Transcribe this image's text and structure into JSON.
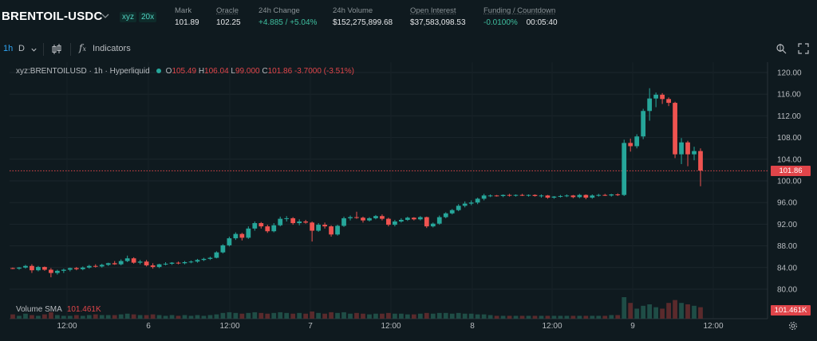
{
  "header": {
    "symbol": "BRENTOIL-USDC",
    "badge_dex": "xyz",
    "badge_leverage": "20x",
    "stats": [
      {
        "label": "Mark",
        "value": "101.89"
      },
      {
        "label": "Oracle",
        "value": "102.25"
      },
      {
        "label": "24h Change",
        "value": "+4.885 / +5.04%"
      },
      {
        "label": "24h Volume",
        "value": "$152,275,899.68"
      },
      {
        "label": "Open Interest",
        "value": "$37,583,098.53"
      },
      {
        "label": "Funding / Countdown",
        "value": "-0.0100%",
        "value2": "00:05:40"
      }
    ]
  },
  "toolbar": {
    "interval": "1h",
    "interval2": "D",
    "indicators_label": "Indicators"
  },
  "legend": {
    "title": "xyz:BRENTOILUSD · 1h · Hyperliquid",
    "o_label": "O",
    "o": "105.49",
    "h_label": "H",
    "h": "106.04",
    "l_label": "L",
    "l": "99.000",
    "c_label": "C",
    "c": "101.86",
    "change": "-3.7000 (-3.51%)"
  },
  "volume": {
    "label": "Volume SMA",
    "value": "101.461K",
    "tag": "101.461K"
  },
  "price_tag": "101.86",
  "colors": {
    "up": "#26a69a",
    "down": "#ef5350",
    "bg": "#0f1a1f"
  },
  "chart_data": {
    "type": "candlestick",
    "y_ticks": [
      "120.00",
      "116.00",
      "112.00",
      "108.00",
      "104.00",
      "100.00",
      "96.00",
      "92.00",
      "88.00",
      "84.00",
      "80.00"
    ],
    "x_ticks": [
      "12:00",
      "6",
      "12:00",
      "7",
      "12:00",
      "8",
      "12:00",
      "9",
      "12:00"
    ],
    "ylim": [
      78.5,
      121
    ],
    "last_price": 101.86,
    "candles": [
      [
        83.9,
        84.0,
        83.7,
        83.8
      ],
      [
        83.8,
        84.1,
        83.6,
        84.0
      ],
      [
        84.0,
        84.5,
        83.8,
        84.3
      ],
      [
        84.3,
        84.6,
        83.0,
        83.5
      ],
      [
        83.5,
        84.3,
        83.3,
        84.1
      ],
      [
        84.1,
        84.2,
        83.4,
        83.6
      ],
      [
        83.6,
        83.9,
        82.2,
        83.0
      ],
      [
        83.0,
        83.6,
        82.7,
        83.4
      ],
      [
        83.4,
        83.8,
        83.0,
        83.6
      ],
      [
        83.6,
        84.0,
        83.3,
        83.9
      ],
      [
        83.9,
        84.1,
        83.5,
        83.7
      ],
      [
        83.7,
        84.2,
        83.5,
        84.0
      ],
      [
        84.0,
        84.5,
        83.8,
        84.3
      ],
      [
        84.3,
        84.6,
        84.0,
        84.2
      ],
      [
        84.2,
        84.7,
        84.0,
        84.5
      ],
      [
        84.5,
        84.9,
        84.3,
        84.8
      ],
      [
        84.8,
        85.2,
        84.5,
        84.6
      ],
      [
        84.6,
        85.5,
        84.4,
        85.2
      ],
      [
        85.2,
        86.2,
        85.0,
        85.7
      ],
      [
        85.7,
        85.9,
        84.7,
        84.9
      ],
      [
        84.9,
        85.4,
        84.6,
        85.1
      ],
      [
        85.1,
        85.4,
        84.2,
        84.4
      ],
      [
        84.4,
        84.8,
        83.8,
        84.1
      ],
      [
        84.1,
        84.7,
        83.9,
        84.6
      ],
      [
        84.6,
        85.0,
        84.4,
        84.7
      ],
      [
        84.7,
        85.0,
        84.5,
        84.9
      ],
      [
        84.9,
        85.1,
        84.6,
        84.8
      ],
      [
        84.8,
        85.2,
        84.6,
        85.0
      ],
      [
        85.0,
        85.3,
        84.8,
        85.1
      ],
      [
        85.1,
        85.6,
        84.9,
        85.4
      ],
      [
        85.4,
        85.8,
        85.2,
        85.6
      ],
      [
        85.6,
        86.0,
        85.4,
        85.8
      ],
      [
        85.8,
        87.0,
        85.7,
        86.8
      ],
      [
        86.8,
        88.3,
        86.6,
        88.1
      ],
      [
        88.1,
        89.7,
        87.9,
        89.4
      ],
      [
        89.4,
        90.5,
        89.1,
        90.2
      ],
      [
        90.2,
        90.4,
        89.0,
        89.5
      ],
      [
        89.5,
        91.6,
        89.3,
        91.2
      ],
      [
        91.2,
        92.5,
        90.8,
        92.2
      ],
      [
        92.2,
        92.4,
        91.2,
        91.6
      ],
      [
        91.6,
        91.9,
        90.4,
        90.7
      ],
      [
        90.7,
        92.2,
        90.5,
        91.8
      ],
      [
        91.8,
        93.4,
        91.6,
        93.0
      ],
      [
        93.0,
        93.5,
        92.5,
        93.1
      ],
      [
        93.1,
        93.3,
        91.9,
        92.2
      ],
      [
        92.2,
        92.9,
        91.8,
        92.5
      ],
      [
        92.5,
        92.8,
        92.1,
        92.3
      ],
      [
        92.3,
        92.5,
        88.8,
        90.8
      ],
      [
        90.8,
        92.2,
        90.6,
        91.9
      ],
      [
        91.9,
        92.3,
        91.2,
        91.6
      ],
      [
        91.6,
        91.8,
        89.7,
        90.1
      ],
      [
        90.1,
        91.9,
        89.9,
        91.7
      ],
      [
        91.7,
        93.4,
        91.5,
        93.1
      ],
      [
        93.1,
        93.6,
        92.7,
        93.3
      ],
      [
        93.3,
        94.3,
        93.0,
        93.2
      ],
      [
        93.2,
        93.4,
        92.3,
        92.7
      ],
      [
        92.7,
        93.3,
        92.5,
        93.1
      ],
      [
        93.1,
        93.7,
        92.9,
        93.5
      ],
      [
        93.5,
        93.8,
        92.7,
        93.0
      ],
      [
        93.0,
        93.2,
        91.6,
        91.9
      ],
      [
        91.9,
        92.8,
        91.6,
        92.5
      ],
      [
        92.5,
        93.1,
        92.3,
        92.8
      ],
      [
        92.8,
        93.4,
        92.6,
        93.2
      ],
      [
        93.2,
        93.3,
        92.7,
        92.9
      ],
      [
        92.9,
        93.5,
        92.7,
        93.3
      ],
      [
        93.3,
        93.4,
        91.3,
        91.6
      ],
      [
        91.6,
        92.3,
        91.4,
        92.1
      ],
      [
        92.1,
        93.6,
        91.9,
        93.3
      ],
      [
        93.3,
        94.2,
        93.1,
        94.0
      ],
      [
        94.0,
        94.8,
        93.8,
        94.6
      ],
      [
        94.6,
        95.7,
        94.4,
        95.4
      ],
      [
        95.4,
        96.2,
        95.1,
        95.8
      ],
      [
        95.8,
        96.4,
        95.5,
        96.0
      ],
      [
        96.0,
        96.9,
        95.7,
        96.7
      ],
      [
        96.7,
        97.6,
        96.4,
        97.3
      ],
      [
        97.3,
        97.5,
        97.0,
        97.3
      ],
      [
        97.3,
        97.4,
        97.1,
        97.2
      ],
      [
        97.2,
        97.5,
        97.0,
        97.4
      ],
      [
        97.4,
        97.6,
        97.1,
        97.3
      ],
      [
        97.3,
        97.5,
        97.1,
        97.4
      ],
      [
        97.4,
        97.6,
        97.2,
        97.3
      ],
      [
        97.3,
        97.5,
        97.1,
        97.4
      ],
      [
        97.4,
        97.5,
        97.1,
        97.2
      ],
      [
        97.2,
        97.5,
        96.9,
        97.3
      ],
      [
        97.3,
        97.4,
        96.7,
        96.9
      ],
      [
        96.9,
        97.2,
        96.7,
        97.1
      ],
      [
        97.1,
        97.4,
        96.9,
        97.2
      ],
      [
        97.2,
        97.5,
        97.0,
        97.3
      ],
      [
        97.3,
        97.4,
        96.8,
        97.0
      ],
      [
        97.0,
        97.6,
        96.8,
        97.4
      ],
      [
        97.4,
        97.5,
        96.6,
        96.9
      ],
      [
        96.9,
        97.5,
        96.7,
        97.3
      ],
      [
        97.3,
        97.6,
        97.1,
        97.4
      ],
      [
        97.4,
        97.6,
        97.2,
        97.3
      ],
      [
        97.3,
        97.6,
        97.1,
        97.5
      ],
      [
        97.5,
        97.7,
        97.2,
        97.4
      ],
      [
        97.4,
        107.6,
        97.2,
        107.0
      ],
      [
        107.0,
        107.8,
        105.4,
        106.4
      ],
      [
        106.4,
        108.6,
        106.0,
        108.2
      ],
      [
        108.2,
        113.3,
        107.7,
        112.9
      ],
      [
        112.9,
        117.1,
        111.1,
        115.2
      ],
      [
        115.2,
        116.3,
        113.6,
        115.9
      ],
      [
        115.9,
        116.2,
        114.2,
        115.1
      ],
      [
        115.1,
        115.4,
        113.8,
        114.4
      ],
      [
        114.4,
        114.6,
        104.2,
        104.9
      ],
      [
        104.9,
        107.9,
        103.1,
        107.1
      ],
      [
        107.1,
        107.4,
        102.7,
        104.9
      ],
      [
        104.9,
        106.3,
        103.8,
        105.5
      ],
      [
        105.5,
        106.0,
        99.0,
        101.9
      ]
    ],
    "volumes": [
      6,
      4,
      7,
      5,
      4,
      6,
      9,
      5,
      4,
      4,
      5,
      4,
      5,
      6,
      5,
      5,
      5,
      6,
      7,
      6,
      5,
      5,
      6,
      5,
      4,
      5,
      4,
      5,
      4,
      5,
      4,
      5,
      6,
      8,
      9,
      8,
      7,
      8,
      9,
      8,
      7,
      8,
      9,
      8,
      7,
      8,
      7,
      10,
      8,
      7,
      9,
      8,
      9,
      7,
      8,
      7,
      6,
      7,
      7,
      8,
      7,
      7,
      6,
      6,
      7,
      8,
      7,
      8,
      8,
      7,
      8,
      7,
      7,
      6,
      6,
      5,
      4,
      4,
      4,
      4,
      4,
      4,
      4,
      4,
      4,
      4,
      4,
      4,
      4,
      4,
      4,
      4,
      4,
      4,
      5,
      5,
      30,
      22,
      14,
      18,
      20,
      16,
      14,
      22,
      26,
      22,
      20,
      18,
      16
    ]
  }
}
